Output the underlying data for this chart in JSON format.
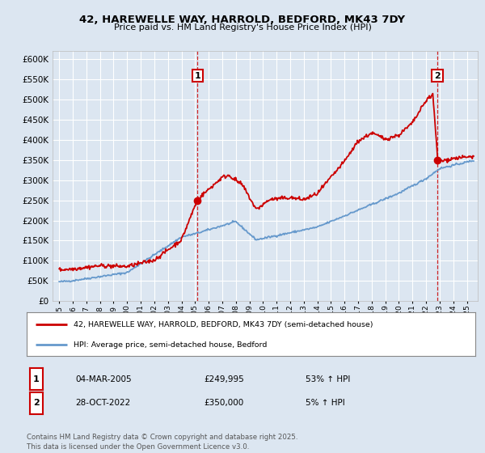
{
  "title": "42, HAREWELLE WAY, HARROLD, BEDFORD, MK43 7DY",
  "subtitle": "Price paid vs. HM Land Registry's House Price Index (HPI)",
  "legend_line1": "42, HAREWELLE WAY, HARROLD, BEDFORD, MK43 7DY (semi-detached house)",
  "legend_line2": "HPI: Average price, semi-detached house, Bedford",
  "sale1_date": "04-MAR-2005",
  "sale1_price": "£249,995",
  "sale1_hpi": "53% ↑ HPI",
  "sale2_date": "28-OCT-2022",
  "sale2_price": "£350,000",
  "sale2_hpi": "5% ↑ HPI",
  "footer": "Contains HM Land Registry data © Crown copyright and database right 2025.\nThis data is licensed under the Open Government Licence v3.0.",
  "red_color": "#cc0000",
  "blue_color": "#6699cc",
  "bg_color": "#dce6f1",
  "plot_bg": "#dce6f1",
  "grid_color": "#ffffff",
  "ylim": [
    0,
    620000
  ],
  "yticks": [
    0,
    50000,
    100000,
    150000,
    200000,
    250000,
    300000,
    350000,
    400000,
    450000,
    500000,
    550000,
    600000
  ],
  "sale1_x": 2005.17,
  "sale1_y": 249995,
  "sale2_x": 2022.83,
  "sale2_y": 350000,
  "vline1_x": 2005.17,
  "vline2_x": 2022.83,
  "xmin": 1994.5,
  "xmax": 2025.8
}
